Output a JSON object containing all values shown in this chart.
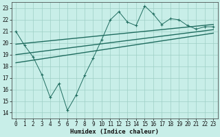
{
  "xlabel": "Humidex (Indice chaleur)",
  "xlim": [
    -0.5,
    23.5
  ],
  "ylim": [
    13.5,
    23.5
  ],
  "yticks": [
    14,
    15,
    16,
    17,
    18,
    19,
    20,
    21,
    22,
    23
  ],
  "xticks": [
    0,
    1,
    2,
    3,
    4,
    5,
    6,
    7,
    8,
    9,
    10,
    11,
    12,
    13,
    14,
    15,
    16,
    17,
    18,
    19,
    20,
    21,
    22,
    23
  ],
  "bg_color": "#c8eee8",
  "line_color": "#1e6b5e",
  "grid_color": "#9ecfc5",
  "scatter_x": [
    0,
    1,
    2,
    3,
    4,
    5,
    6,
    7,
    8,
    9,
    10,
    11,
    12,
    13,
    14,
    15,
    16,
    17,
    18,
    19,
    20,
    21,
    22,
    23
  ],
  "scatter_y": [
    21.0,
    19.8,
    18.8,
    17.3,
    15.3,
    16.5,
    14.2,
    15.5,
    17.2,
    18.7,
    20.3,
    22.0,
    22.7,
    21.8,
    21.5,
    23.2,
    22.5,
    21.6,
    22.1,
    22.0,
    21.5,
    21.2,
    21.4,
    21.4
  ],
  "trend1_x": [
    0,
    23
  ],
  "trend1_y": [
    19.9,
    21.6
  ],
  "trend2_x": [
    0,
    23
  ],
  "trend2_y": [
    19.0,
    21.15
  ],
  "trend3_x": [
    0,
    23
  ],
  "trend3_y": [
    18.3,
    20.85
  ],
  "tick_fontsize": 5.5,
  "xlabel_fontsize": 6.5
}
